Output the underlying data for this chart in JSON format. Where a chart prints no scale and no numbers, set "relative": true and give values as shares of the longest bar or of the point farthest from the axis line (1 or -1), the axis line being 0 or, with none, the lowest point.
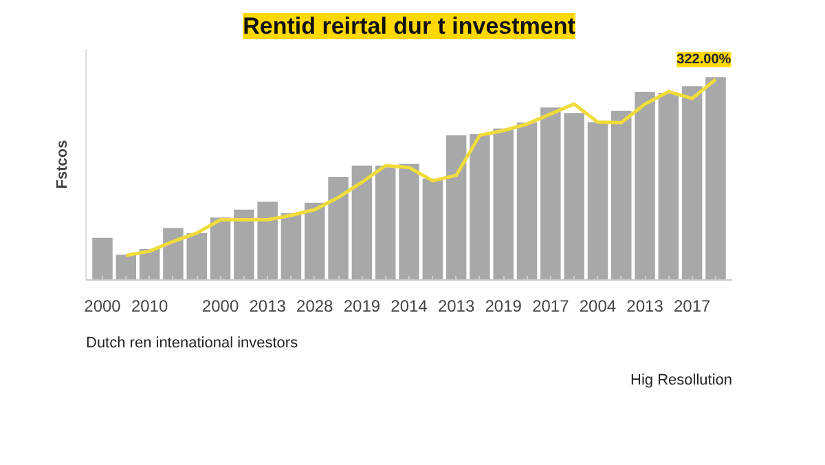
{
  "chart_data": {
    "type": "bar",
    "title": "Rentid reirtal dur t investment",
    "ylabel": "Fstcos",
    "relative": true,
    "categories": [
      "2000",
      null,
      "2010",
      null,
      null,
      "2000",
      null,
      "2013",
      null,
      "2028",
      null,
      "2019",
      null,
      "2014",
      null,
      "2013",
      null,
      "2019",
      null,
      "2017",
      null,
      "2004",
      null,
      "2013",
      null,
      "2017",
      null
    ],
    "series": [
      {
        "color": "#a7a8aa",
        "values": [
          0.208,
          0.125,
          0.153,
          0.256,
          0.231,
          0.308,
          0.347,
          0.386,
          0.329,
          0.381,
          0.509,
          0.564,
          0.564,
          0.573,
          0.5,
          0.714,
          0.719,
          0.747,
          0.776,
          0.851,
          0.824,
          0.779,
          0.835,
          0.927,
          0.923,
          0.956,
          1
        ]
      },
      {
        "type": "line",
        "color": "#efdc3c",
        "values": [
          null,
          0.121,
          0.142,
          0.19,
          0.231,
          0.297,
          0.297,
          0.297,
          0.319,
          0.347,
          0.407,
          0.482,
          0.564,
          0.555,
          0.489,
          0.516,
          0.714,
          0.737,
          0.769,
          0.819,
          0.868,
          0.779,
          0.776,
          0.868,
          0.929,
          0.895,
          0.989
        ]
      }
    ],
    "annotations": [
      "322.00%",
      "Dutch ren intenational investors",
      "Hig Resollution"
    ]
  }
}
